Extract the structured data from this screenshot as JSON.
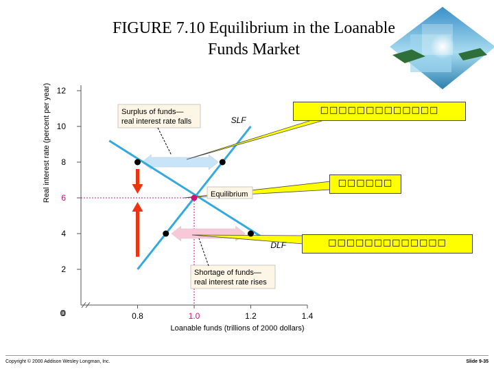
{
  "title_line1": "FIGURE 7.10  Equilibrium in the Loanable",
  "title_line2": "Funds Market",
  "footer": {
    "copyright": "Copyright © 2000 Addison Wesley Longman, Inc.",
    "slide": "Slide 9-35"
  },
  "callouts": [
    "□□□□□□□□□□□□□",
    "□□□□□□",
    "□□□□□□□□□□□□□"
  ],
  "chart_data": {
    "type": "line",
    "ylabel": "Real interest rate (percent per year)",
    "xlabel": "Loanable funds (trillions of 2000 dollars)",
    "x_ticks": [
      "0",
      "0.8",
      "1.0",
      "1.2",
      "1.4"
    ],
    "y_ticks": [
      "0",
      "2",
      "4",
      "6",
      "8",
      "10",
      "12"
    ],
    "xlim": [
      0.6,
      1.4
    ],
    "ylim": [
      0,
      12
    ],
    "series": [
      {
        "name": "SLF",
        "x": [
          0.8,
          1.2
        ],
        "y": [
          2,
          10
        ]
      },
      {
        "name": "DLF",
        "x": [
          0.7,
          1.25
        ],
        "y": [
          9.2,
          3.7
        ]
      }
    ],
    "equilibrium": {
      "x": 1.0,
      "y": 6,
      "label": "Equilibrium"
    },
    "surplus": {
      "y": 8,
      "x_demand": 0.8,
      "x_supply": 1.1,
      "label_line1": "Surplus of funds—",
      "label_line2": "real interest rate falls"
    },
    "shortage": {
      "y": 4,
      "x_supply": 0.9,
      "x_demand": 1.2,
      "label_line1": "Shortage of funds—",
      "label_line2": "real interest rate rises"
    },
    "colors": {
      "curves": "#33aadd",
      "equilibrium_point": "#cc1177",
      "guide": "#cc1177",
      "red_arrow": "#ee3311",
      "surplus_arrow": "#c8e4f8",
      "shortage_arrow": "#f8c8d8",
      "callout": "#ffff00"
    }
  }
}
